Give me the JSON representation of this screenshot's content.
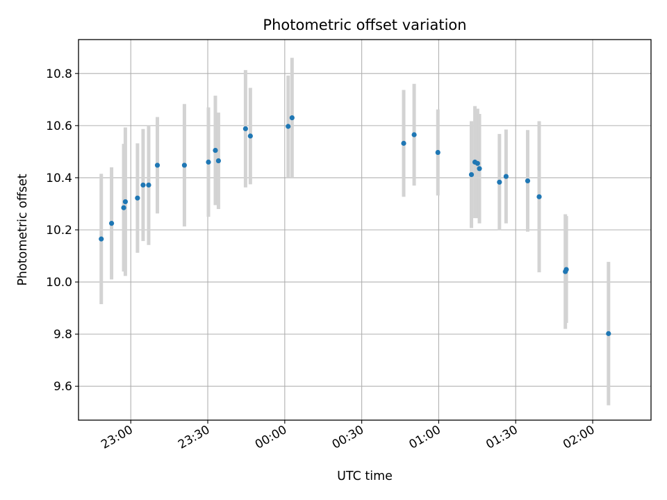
{
  "chart_data": {
    "type": "scatter",
    "title": "Photometric offset variation",
    "xlabel": "UTC time",
    "ylabel": "Photometric offset",
    "x_ticks": [
      "23:00",
      "23:30",
      "00:00",
      "00:30",
      "01:00",
      "01:30",
      "02:00"
    ],
    "y_ticks": [
      "9.6",
      "9.8",
      "10.0",
      "10.2",
      "10.4",
      "10.6",
      "10.8"
    ],
    "xlim": [
      "22:39:38",
      "02:22:44"
    ],
    "ylim": [
      9.47,
      10.93
    ],
    "grid": true,
    "series": [
      {
        "color": "#1f77b4",
        "errorbar_color": "#d3d3d3",
        "points": [
          {
            "x": "22:48:30",
            "y": 10.165,
            "err": 0.25
          },
          {
            "x": "22:52:31",
            "y": 10.225,
            "err": 0.215
          },
          {
            "x": "22:57:15",
            "y": 10.285,
            "err": 0.245
          },
          {
            "x": "22:57:53",
            "y": 10.308,
            "err": 0.285
          },
          {
            "x": "23:02:37",
            "y": 10.322,
            "err": 0.21
          },
          {
            "x": "23:04:48",
            "y": 10.372,
            "err": 0.215
          },
          {
            "x": "23:06:58",
            "y": 10.372,
            "err": 0.23
          },
          {
            "x": "23:10:22",
            "y": 10.448,
            "err": 0.185
          },
          {
            "x": "23:20:54",
            "y": 10.448,
            "err": 0.235
          },
          {
            "x": "23:30:16",
            "y": 10.46,
            "err": 0.21
          },
          {
            "x": "23:32:58",
            "y": 10.505,
            "err": 0.21
          },
          {
            "x": "23:34:10",
            "y": 10.465,
            "err": 0.185
          },
          {
            "x": "23:44:43",
            "y": 10.588,
            "err": 0.225
          },
          {
            "x": "23:46:36",
            "y": 10.56,
            "err": 0.185
          },
          {
            "x": "00:01:20",
            "y": 10.597,
            "err": 0.195
          },
          {
            "x": "00:02:51",
            "y": 10.63,
            "err": 0.23
          },
          {
            "x": "00:46:21",
            "y": 10.532,
            "err": 0.205
          },
          {
            "x": "00:50:26",
            "y": 10.565,
            "err": 0.195
          },
          {
            "x": "00:59:41",
            "y": 10.497,
            "err": 0.165
          },
          {
            "x": "01:12:45",
            "y": 10.412,
            "err": 0.205
          },
          {
            "x": "01:14:07",
            "y": 10.46,
            "err": 0.215
          },
          {
            "x": "01:15:08",
            "y": 10.455,
            "err": 0.21
          },
          {
            "x": "01:15:52",
            "y": 10.435,
            "err": 0.21
          },
          {
            "x": "01:23:40",
            "y": 10.383,
            "err": 0.185
          },
          {
            "x": "01:26:15",
            "y": 10.405,
            "err": 0.18
          },
          {
            "x": "01:34:40",
            "y": 10.388,
            "err": 0.195
          },
          {
            "x": "01:39:09",
            "y": 10.327,
            "err": 0.29
          },
          {
            "x": "01:49:21",
            "y": 10.04,
            "err": 0.22
          },
          {
            "x": "01:49:44",
            "y": 10.048,
            "err": 0.205
          },
          {
            "x": "02:06:10",
            "y": 9.802,
            "err": 0.275
          }
        ]
      }
    ]
  }
}
